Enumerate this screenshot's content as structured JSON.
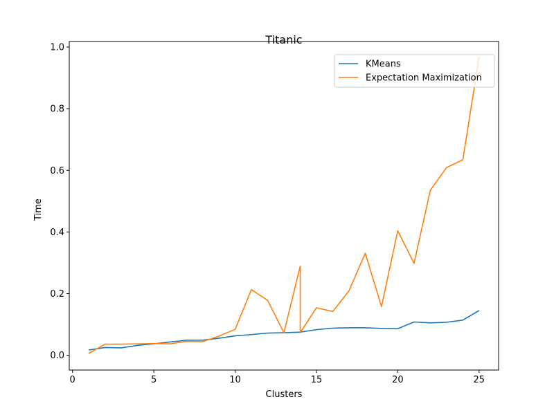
{
  "chart_data": {
    "type": "line",
    "title": "Titanic",
    "xlabel": "Clusters",
    "ylabel": "Time",
    "xlim": [
      -0.2,
      26.2
    ],
    "ylim": [
      -0.048,
      1.018
    ],
    "xticks": [
      0,
      5,
      10,
      15,
      20,
      25
    ],
    "yticks": [
      0.0,
      0.2,
      0.4,
      0.6,
      0.8,
      1.0
    ],
    "xtick_labels": [
      "0",
      "5",
      "10",
      "15",
      "20",
      "25"
    ],
    "ytick_labels": [
      "0.0",
      "0.2",
      "0.4",
      "0.6",
      "0.8",
      "1.0"
    ],
    "grid": false,
    "legend_position": "top-right",
    "series": [
      {
        "name": "KMeans",
        "color": "#1f77b4",
        "points": [
          [
            1,
            0.017
          ],
          [
            2,
            0.025
          ],
          [
            3,
            0.024
          ],
          [
            4,
            0.032
          ],
          [
            5,
            0.037
          ],
          [
            6,
            0.043
          ],
          [
            7,
            0.049
          ],
          [
            8,
            0.049
          ],
          [
            9,
            0.055
          ],
          [
            10,
            0.063
          ],
          [
            11,
            0.067
          ],
          [
            12,
            0.072
          ],
          [
            13,
            0.073
          ],
          [
            14,
            0.075
          ],
          [
            15,
            0.083
          ],
          [
            16,
            0.088
          ],
          [
            17,
            0.089
          ],
          [
            18,
            0.089
          ],
          [
            19,
            0.087
          ],
          [
            20,
            0.086
          ],
          [
            21,
            0.108
          ],
          [
            22,
            0.105
          ],
          [
            23,
            0.107
          ],
          [
            24,
            0.114
          ],
          [
            25,
            0.145
          ]
        ]
      },
      {
        "name": "Expectation Maximization",
        "color": "#ff7f0e",
        "points": [
          [
            1,
            0.006
          ],
          [
            2,
            0.036
          ],
          [
            3,
            0.036
          ],
          [
            4,
            0.037
          ],
          [
            5,
            0.038
          ],
          [
            6,
            0.037
          ],
          [
            7,
            0.045
          ],
          [
            8,
            0.044
          ],
          [
            9,
            0.062
          ],
          [
            10,
            0.084
          ],
          [
            11,
            0.213
          ],
          [
            12,
            0.178
          ],
          [
            13,
            0.073
          ],
          [
            14,
            0.289
          ],
          [
            14,
            0.073
          ],
          [
            15,
            0.154
          ],
          [
            16,
            0.142
          ],
          [
            17,
            0.209
          ],
          [
            18,
            0.331
          ],
          [
            19,
            0.158
          ],
          [
            20,
            0.404
          ],
          [
            21,
            0.298
          ],
          [
            22,
            0.535
          ],
          [
            23,
            0.609
          ],
          [
            24,
            0.634
          ],
          [
            25,
            0.968
          ]
        ]
      }
    ]
  }
}
